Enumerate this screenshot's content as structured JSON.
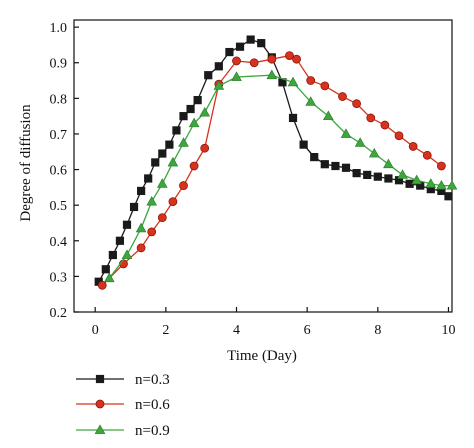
{
  "chart_data": {
    "type": "line",
    "title": "",
    "xlabel": "Time (Day)",
    "ylabel": "Degree of diffusion",
    "xlim": [
      -0.6,
      10.1
    ],
    "ylim": [
      0.2,
      1.02
    ],
    "xticks": [
      0,
      2,
      4,
      6,
      8,
      10
    ],
    "yticks": [
      0.2,
      0.3,
      0.4,
      0.5,
      0.6,
      0.7,
      0.8,
      0.9,
      1.0
    ],
    "ytick_labels": [
      "0.2",
      "0.3",
      "0.4",
      "0.5",
      "0.6",
      "0.7",
      "0.8",
      "0.9",
      "1.0"
    ],
    "grid": false,
    "legend_position": "bottom-left",
    "series": [
      {
        "name": "n=0.3",
        "color": "#1a1a1a",
        "marker": "square",
        "x": [
          0.1,
          0.3,
          0.5,
          0.7,
          0.9,
          1.1,
          1.3,
          1.5,
          1.7,
          1.9,
          2.1,
          2.3,
          2.5,
          2.7,
          2.9,
          3.2,
          3.5,
          3.8,
          4.1,
          4.4,
          4.7,
          5.0,
          5.3,
          5.6,
          5.9,
          6.2,
          6.5,
          6.8,
          7.1,
          7.4,
          7.7,
          8.0,
          8.3,
          8.6,
          8.9,
          9.2,
          9.5,
          9.8,
          10.0
        ],
        "y": [
          0.285,
          0.32,
          0.36,
          0.4,
          0.445,
          0.495,
          0.54,
          0.575,
          0.62,
          0.645,
          0.67,
          0.71,
          0.75,
          0.77,
          0.795,
          0.865,
          0.89,
          0.93,
          0.945,
          0.965,
          0.955,
          0.915,
          0.845,
          0.745,
          0.67,
          0.635,
          0.615,
          0.61,
          0.605,
          0.59,
          0.585,
          0.58,
          0.575,
          0.57,
          0.56,
          0.555,
          0.545,
          0.54,
          0.525
        ]
      },
      {
        "name": "n=0.6",
        "color": "#d8321e",
        "marker": "circle",
        "x": [
          0.2,
          0.8,
          1.3,
          1.6,
          1.9,
          2.2,
          2.5,
          2.8,
          3.1,
          3.5,
          4.0,
          4.5,
          5.0,
          5.5,
          5.7,
          6.1,
          6.5,
          7.0,
          7.4,
          7.8,
          8.2,
          8.6,
          9.0,
          9.4,
          9.8
        ],
        "y": [
          0.275,
          0.335,
          0.38,
          0.425,
          0.465,
          0.51,
          0.555,
          0.61,
          0.66,
          0.84,
          0.905,
          0.9,
          0.91,
          0.92,
          0.91,
          0.85,
          0.835,
          0.805,
          0.785,
          0.745,
          0.725,
          0.695,
          0.665,
          0.64,
          0.61
        ]
      },
      {
        "name": "n=0.9",
        "color": "#3da63d",
        "marker": "triangle",
        "x": [
          0.4,
          0.9,
          1.3,
          1.6,
          1.9,
          2.2,
          2.5,
          2.8,
          3.1,
          3.5,
          4.0,
          5.0,
          5.6,
          6.1,
          6.6,
          7.1,
          7.5,
          7.9,
          8.3,
          8.7,
          9.1,
          9.5,
          9.8,
          10.1
        ],
        "y": [
          0.295,
          0.36,
          0.435,
          0.51,
          0.56,
          0.62,
          0.675,
          0.73,
          0.76,
          0.835,
          0.86,
          0.865,
          0.845,
          0.79,
          0.75,
          0.7,
          0.675,
          0.645,
          0.615,
          0.585,
          0.57,
          0.56,
          0.555,
          0.555
        ]
      }
    ]
  }
}
